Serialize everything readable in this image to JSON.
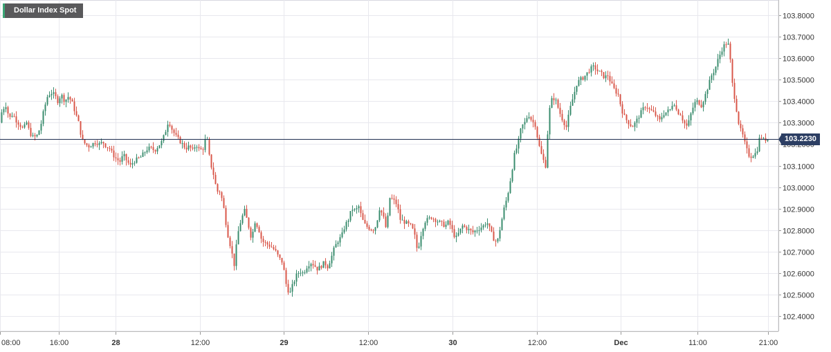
{
  "title": "Dollar Index Spot",
  "last_price": "103.2230",
  "colors": {
    "up": "#3a8c6e",
    "down": "#d9574a",
    "grid": "#e8e8ee",
    "price_line": "#1f2d4f",
    "badge": "#59595b",
    "price_badge": "#2c3e63"
  },
  "chart_data": {
    "type": "candlestick",
    "title": "Dollar Index Spot",
    "ylim": [
      102.33,
      103.87
    ],
    "y_ticks": [
      "103.8000",
      "103.7000",
      "103.6000",
      "103.5000",
      "103.4000",
      "103.3000",
      "103.2000",
      "103.1000",
      "103.0000",
      "102.9000",
      "102.8000",
      "102.7000",
      "102.6000",
      "102.5000",
      "102.4000"
    ],
    "x_ticks": [
      {
        "label": "08:00",
        "bold": false
      },
      {
        "label": "16:00",
        "bold": false
      },
      {
        "label": "28",
        "bold": true
      },
      {
        "label": "12:00",
        "bold": false
      },
      {
        "label": "29",
        "bold": true
      },
      {
        "label": "12:00",
        "bold": false
      },
      {
        "label": "30",
        "bold": true
      },
      {
        "label": "12:00",
        "bold": false
      },
      {
        "label": "Dec",
        "bold": true
      },
      {
        "label": "11:00",
        "bold": false
      },
      {
        "label": "21:00",
        "bold": false
      }
    ],
    "last_value": 103.223,
    "grid": true,
    "path_points": [
      [
        0,
        103.3
      ],
      [
        5,
        103.36
      ],
      [
        10,
        103.38
      ],
      [
        15,
        103.32
      ],
      [
        20,
        103.34
      ],
      [
        25,
        103.31
      ],
      [
        30,
        103.29
      ],
      [
        35,
        103.27
      ],
      [
        40,
        103.3
      ],
      [
        45,
        103.25
      ],
      [
        50,
        103.23
      ],
      [
        55,
        103.24
      ],
      [
        60,
        103.28
      ],
      [
        65,
        103.36
      ],
      [
        70,
        103.42
      ],
      [
        75,
        103.44
      ],
      [
        80,
        103.43
      ],
      [
        85,
        103.4
      ],
      [
        90,
        103.43
      ],
      [
        95,
        103.4
      ],
      [
        100,
        103.42
      ],
      [
        105,
        103.4
      ],
      [
        110,
        103.35
      ],
      [
        115,
        103.3
      ],
      [
        120,
        103.22
      ],
      [
        125,
        103.2
      ],
      [
        130,
        103.19
      ],
      [
        135,
        103.2
      ],
      [
        140,
        103.21
      ],
      [
        145,
        103.2
      ],
      [
        150,
        103.21
      ],
      [
        155,
        103.19
      ],
      [
        160,
        103.18
      ],
      [
        165,
        103.15
      ],
      [
        170,
        103.13
      ],
      [
        175,
        103.12
      ],
      [
        180,
        103.15
      ],
      [
        185,
        103.12
      ],
      [
        190,
        103.1
      ],
      [
        195,
        103.12
      ],
      [
        200,
        103.13
      ],
      [
        205,
        103.14
      ],
      [
        210,
        103.16
      ],
      [
        215,
        103.18
      ],
      [
        220,
        103.18
      ],
      [
        225,
        103.17
      ],
      [
        230,
        103.19
      ],
      [
        235,
        103.21
      ],
      [
        240,
        103.25
      ],
      [
        245,
        103.31
      ],
      [
        250,
        103.27
      ],
      [
        255,
        103.24
      ],
      [
        260,
        103.22
      ],
      [
        265,
        103.2
      ],
      [
        270,
        103.18
      ],
      [
        275,
        103.19
      ],
      [
        280,
        103.17
      ],
      [
        285,
        103.2
      ],
      [
        290,
        103.17
      ],
      [
        295,
        103.18
      ],
      [
        300,
        103.24
      ],
      [
        305,
        103.12
      ],
      [
        310,
        103.06
      ],
      [
        315,
        102.98
      ],
      [
        320,
        102.98
      ],
      [
        325,
        102.9
      ],
      [
        330,
        102.79
      ],
      [
        335,
        102.72
      ],
      [
        340,
        102.64
      ],
      [
        345,
        102.78
      ],
      [
        350,
        102.85
      ],
      [
        355,
        102.89
      ],
      [
        360,
        102.83
      ],
      [
        365,
        102.76
      ],
      [
        370,
        102.84
      ],
      [
        375,
        102.81
      ],
      [
        380,
        102.75
      ],
      [
        385,
        102.74
      ],
      [
        390,
        102.73
      ],
      [
        395,
        102.72
      ],
      [
        400,
        102.7
      ],
      [
        405,
        102.67
      ],
      [
        410,
        102.65
      ],
      [
        415,
        102.55
      ],
      [
        420,
        102.5
      ],
      [
        425,
        102.55
      ],
      [
        430,
        102.59
      ],
      [
        435,
        102.61
      ],
      [
        440,
        102.6
      ],
      [
        445,
        102.63
      ],
      [
        450,
        102.65
      ],
      [
        455,
        102.64
      ],
      [
        460,
        102.62
      ],
      [
        465,
        102.63
      ],
      [
        470,
        102.65
      ],
      [
        475,
        102.63
      ],
      [
        480,
        102.67
      ],
      [
        485,
        102.72
      ],
      [
        490,
        102.75
      ],
      [
        495,
        102.77
      ],
      [
        500,
        102.82
      ],
      [
        505,
        102.85
      ],
      [
        510,
        102.9
      ],
      [
        515,
        102.89
      ],
      [
        520,
        102.91
      ],
      [
        525,
        102.85
      ],
      [
        530,
        102.82
      ],
      [
        535,
        102.81
      ],
      [
        540,
        102.8
      ],
      [
        545,
        102.82
      ],
      [
        550,
        102.9
      ],
      [
        555,
        102.87
      ],
      [
        560,
        102.8
      ],
      [
        565,
        102.95
      ],
      [
        570,
        102.94
      ],
      [
        575,
        102.92
      ],
      [
        580,
        102.85
      ],
      [
        585,
        102.84
      ],
      [
        590,
        102.83
      ],
      [
        595,
        102.82
      ],
      [
        600,
        102.79
      ],
      [
        605,
        102.7
      ],
      [
        610,
        102.78
      ],
      [
        615,
        102.84
      ],
      [
        620,
        102.85
      ],
      [
        625,
        102.86
      ],
      [
        630,
        102.85
      ],
      [
        635,
        102.84
      ],
      [
        640,
        102.83
      ],
      [
        645,
        102.82
      ],
      [
        650,
        102.84
      ],
      [
        655,
        102.8
      ],
      [
        660,
        102.76
      ],
      [
        665,
        102.79
      ],
      [
        670,
        102.82
      ],
      [
        675,
        102.81
      ],
      [
        680,
        102.8
      ],
      [
        685,
        102.79
      ],
      [
        690,
        102.8
      ],
      [
        695,
        102.81
      ],
      [
        700,
        102.82
      ],
      [
        705,
        102.84
      ],
      [
        710,
        102.8
      ],
      [
        715,
        102.76
      ],
      [
        720,
        102.74
      ],
      [
        725,
        102.82
      ],
      [
        730,
        102.9
      ],
      [
        735,
        102.96
      ],
      [
        740,
        103.05
      ],
      [
        745,
        103.15
      ],
      [
        750,
        103.2
      ],
      [
        755,
        103.28
      ],
      [
        760,
        103.3
      ],
      [
        765,
        103.34
      ],
      [
        770,
        103.31
      ],
      [
        775,
        103.29
      ],
      [
        780,
        103.2
      ],
      [
        785,
        103.14
      ],
      [
        790,
        103.1
      ],
      [
        795,
        103.35
      ],
      [
        800,
        103.42
      ],
      [
        805,
        103.4
      ],
      [
        810,
        103.35
      ],
      [
        815,
        103.31
      ],
      [
        820,
        103.28
      ],
      [
        825,
        103.36
      ],
      [
        830,
        103.42
      ],
      [
        835,
        103.48
      ],
      [
        840,
        103.5
      ],
      [
        845,
        103.51
      ],
      [
        850,
        103.53
      ],
      [
        855,
        103.55
      ],
      [
        860,
        103.56
      ],
      [
        865,
        103.54
      ],
      [
        870,
        103.53
      ],
      [
        875,
        103.51
      ],
      [
        880,
        103.52
      ],
      [
        885,
        103.48
      ],
      [
        890,
        103.45
      ],
      [
        895,
        103.43
      ],
      [
        900,
        103.36
      ],
      [
        905,
        103.32
      ],
      [
        910,
        103.3
      ],
      [
        915,
        103.28
      ],
      [
        920,
        103.3
      ],
      [
        925,
        103.33
      ],
      [
        930,
        103.36
      ],
      [
        935,
        103.38
      ],
      [
        940,
        103.36
      ],
      [
        945,
        103.35
      ],
      [
        950,
        103.33
      ],
      [
        955,
        103.31
      ],
      [
        960,
        103.34
      ],
      [
        965,
        103.35
      ],
      [
        970,
        103.36
      ],
      [
        975,
        103.4
      ],
      [
        980,
        103.35
      ],
      [
        985,
        103.34
      ],
      [
        990,
        103.3
      ],
      [
        995,
        103.28
      ],
      [
        1000,
        103.34
      ],
      [
        1005,
        103.39
      ],
      [
        1010,
        103.4
      ],
      [
        1015,
        103.38
      ],
      [
        1020,
        103.42
      ],
      [
        1025,
        103.47
      ],
      [
        1030,
        103.52
      ],
      [
        1035,
        103.55
      ],
      [
        1040,
        103.6
      ],
      [
        1045,
        103.64
      ],
      [
        1050,
        103.67
      ],
      [
        1055,
        103.66
      ],
      [
        1060,
        103.48
      ],
      [
        1065,
        103.38
      ],
      [
        1070,
        103.28
      ],
      [
        1075,
        103.24
      ],
      [
        1080,
        103.18
      ],
      [
        1085,
        103.14
      ],
      [
        1090,
        103.15
      ],
      [
        1095,
        103.16
      ],
      [
        1100,
        103.24
      ],
      [
        1105,
        103.22
      ],
      [
        1110,
        103.223
      ]
    ]
  }
}
